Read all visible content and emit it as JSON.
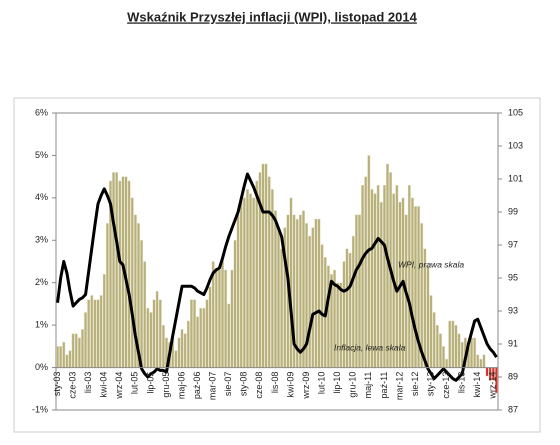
{
  "chart_data": {
    "type": "bar-line",
    "title": "Wskaźnik Przyszłej inflacji (WPI), listopad 2014",
    "categories": [
      "sty-03",
      null,
      null,
      null,
      null,
      "cze-03",
      null,
      null,
      null,
      null,
      "lis-03",
      null,
      null,
      null,
      null,
      "kwi-04",
      null,
      null,
      null,
      null,
      "wrz-04",
      null,
      null,
      null,
      null,
      "lut-05",
      null,
      null,
      null,
      null,
      "lip-05",
      null,
      null,
      null,
      null,
      "gru-05",
      null,
      null,
      null,
      null,
      "maj-06",
      null,
      null,
      null,
      null,
      "paź-06",
      null,
      null,
      null,
      null,
      "mar-07",
      null,
      null,
      null,
      null,
      "sie-07",
      null,
      null,
      null,
      null,
      "sty-08",
      null,
      null,
      null,
      null,
      "cze-08",
      null,
      null,
      null,
      null,
      "lis-08",
      null,
      null,
      null,
      null,
      "kwi-09",
      null,
      null,
      null,
      null,
      "wrz-09",
      null,
      null,
      null,
      null,
      "lut-10",
      null,
      null,
      null,
      null,
      "lip-10",
      null,
      null,
      null,
      null,
      "gru-10",
      null,
      null,
      null,
      null,
      "maj-11",
      null,
      null,
      null,
      null,
      "paź-11",
      null,
      null,
      null,
      null,
      "mar-12",
      null,
      null,
      null,
      null,
      "sie-12",
      null,
      null,
      null,
      null,
      "sty-13",
      null,
      null,
      null,
      null,
      "cze-13",
      null,
      null,
      null,
      null,
      "lis-13",
      null,
      null,
      null,
      null,
      "kwi-14",
      null,
      null,
      null,
      null,
      "wrz-14",
      null
    ],
    "series": [
      {
        "kind": "bar",
        "color": "#b8b07c",
        "negative_color": "#d03030",
        "values": [
          0.5,
          0.5,
          0.6,
          0.3,
          0.4,
          0.8,
          0.8,
          0.7,
          0.9,
          1.3,
          1.6,
          1.7,
          1.6,
          1.6,
          1.7,
          2.2,
          3.4,
          4.4,
          4.6,
          4.6,
          4.4,
          4.5,
          4.5,
          4.4,
          4.0,
          3.6,
          3.4,
          3.0,
          2.5,
          1.4,
          1.3,
          1.6,
          1.8,
          1.6,
          1.0,
          0.7,
          0.6,
          0.7,
          0.4,
          0.7,
          0.9,
          0.8,
          1.1,
          1.6,
          1.6,
          1.2,
          1.4,
          1.4,
          1.6,
          1.9,
          2.5,
          2.3,
          2.3,
          2.6,
          2.3,
          1.5,
          2.3,
          3.0,
          3.6,
          4.0,
          4.0,
          4.2,
          4.1,
          4.0,
          4.4,
          4.6,
          4.8,
          4.8,
          4.5,
          4.2,
          3.7,
          3.3,
          2.8,
          3.3,
          3.6,
          4.0,
          3.6,
          3.5,
          3.6,
          3.7,
          3.4,
          3.1,
          3.3,
          3.5,
          3.5,
          2.9,
          2.6,
          2.4,
          2.2,
          2.3,
          2.0,
          2.0,
          2.5,
          2.8,
          2.7,
          3.1,
          3.6,
          3.6,
          4.3,
          4.5,
          5.0,
          4.2,
          4.1,
          4.3,
          3.9,
          4.3,
          4.8,
          4.6,
          4.1,
          4.3,
          3.9,
          4.0,
          3.6,
          4.3,
          4.0,
          3.8,
          3.8,
          3.4,
          2.8,
          2.4,
          1.7,
          1.3,
          1.0,
          0.8,
          0.5,
          0.2,
          1.1,
          1.1,
          1.0,
          0.8,
          0.6,
          0.7,
          0.5,
          0.7,
          0.7,
          0.3,
          0.2,
          0.3,
          -0.2,
          -0.3,
          -0.3,
          -0.6
        ]
      },
      {
        "kind": "line",
        "axis": "y2",
        "color": "#000000",
        "values": [
          93.5,
          95.0,
          96.0,
          95.3,
          94.2,
          93.3,
          93.5,
          93.7,
          93.8,
          94.0,
          95.4,
          96.8,
          98.2,
          99.5,
          100.0,
          100.4,
          100.0,
          99.5,
          98.3,
          97.2,
          96.0,
          95.8,
          94.9,
          94.0,
          92.8,
          91.5,
          90.5,
          89.5,
          89.2,
          89.0,
          89.2,
          89.3,
          89.5,
          89.4,
          89.4,
          89.3,
          90.4,
          91.5,
          92.5,
          93.5,
          94.5,
          94.5,
          94.5,
          94.5,
          94.4,
          94.2,
          94.1,
          94.0,
          94.4,
          94.9,
          95.3,
          95.5,
          95.6,
          96.2,
          96.9,
          97.5,
          98.0,
          98.5,
          99.0,
          99.8,
          100.6,
          101.3,
          100.9,
          100.5,
          100.0,
          99.5,
          99.0,
          99.0,
          99.0,
          98.8,
          98.5,
          98.0,
          97.5,
          96.2,
          95.0,
          93.0,
          91.0,
          90.7,
          90.5,
          90.7,
          91.0,
          91.9,
          92.8,
          92.9,
          93.0,
          92.8,
          92.7,
          93.8,
          94.8,
          94.6,
          94.5,
          94.3,
          94.2,
          94.3,
          94.5,
          95.0,
          95.5,
          95.8,
          96.2,
          96.5,
          96.7,
          96.8,
          97.1,
          97.4,
          97.2,
          97.0,
          96.2,
          95.5,
          94.8,
          94.2,
          94.5,
          94.8,
          94.1,
          93.5,
          92.6,
          91.8,
          91.1,
          90.5,
          90.0,
          89.5,
          89.2,
          88.9,
          89.1,
          89.3,
          89.5,
          89.3,
          89.1,
          88.9,
          88.8,
          89.0,
          89.2,
          90.1,
          91.0,
          91.7,
          92.4,
          92.5,
          92.0,
          91.5,
          91.0,
          90.7,
          90.5,
          90.2
        ]
      }
    ],
    "ylim": [
      -1,
      6
    ],
    "yticks": [
      {
        "value": -1,
        "label": "-1%"
      },
      {
        "value": 0,
        "label": "0%"
      },
      {
        "value": 1,
        "label": "1%"
      },
      {
        "value": 2,
        "label": "2%"
      },
      {
        "value": 3,
        "label": "3%"
      },
      {
        "value": 4,
        "label": "4%"
      },
      {
        "value": 5,
        "label": "5%"
      },
      {
        "value": 6,
        "label": "6%"
      }
    ],
    "y2lim": [
      87,
      105
    ],
    "y2ticks": [
      87,
      89,
      91,
      93,
      95,
      97,
      99,
      101,
      103,
      105
    ],
    "annotations": [
      "WPI, prawa skala",
      "Inflacja, lewa skala"
    ]
  }
}
